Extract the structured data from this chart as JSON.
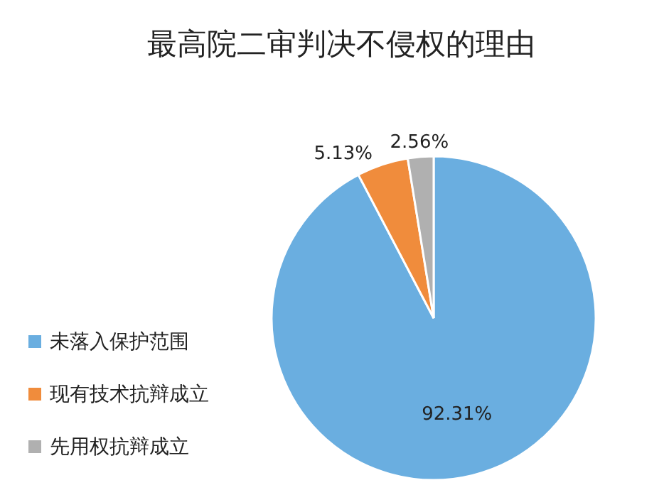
{
  "chart_data": {
    "type": "pie",
    "title": "最高院二审判决不侵权的理由",
    "categories": [
      "未落入保护范围",
      "现有技术抗辩成立",
      "先用权抗辩成立"
    ],
    "values": [
      92.31,
      5.13,
      2.56
    ],
    "colors": [
      "#6aaee0",
      "#f08c3c",
      "#b0b0b0"
    ],
    "value_labels": [
      "92.31%",
      "5.13%",
      "2.56%"
    ],
    "legend": "bottom left"
  }
}
